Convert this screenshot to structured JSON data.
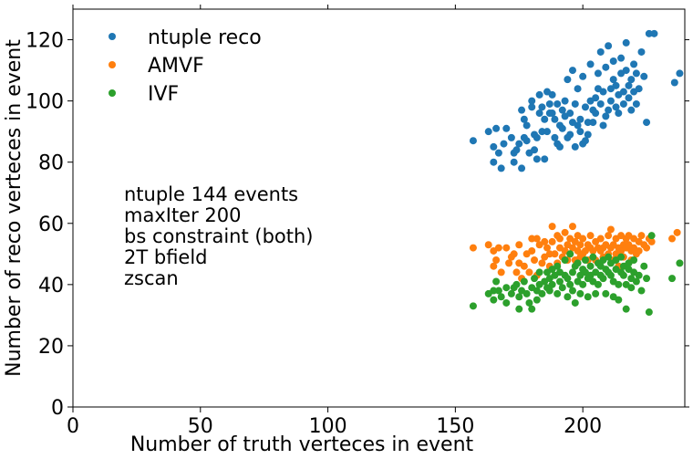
{
  "chart_data": {
    "type": "scatter",
    "xlabel": "Number of truth verteces in event",
    "ylabel": "Number of reco verteces in event",
    "xlim": [
      0,
      240
    ],
    "ylim": [
      0,
      130
    ],
    "xticks": [
      0,
      50,
      100,
      150,
      200
    ],
    "yticks": [
      0,
      20,
      40,
      60,
      80,
      100,
      120
    ],
    "grid": false,
    "legend_position": "top-left",
    "annotation": [
      "ntuple 144 events",
      "maxIter 200",
      "bs constraint (both)",
      "2T bfield",
      "zscan"
    ],
    "series": [
      {
        "name": "ntuple reco",
        "color": "#1f77b4",
        "points": [
          [
            157,
            87
          ],
          [
            163,
            90
          ],
          [
            165,
            85
          ],
          [
            165,
            80
          ],
          [
            166,
            91
          ],
          [
            167,
            83
          ],
          [
            168,
            78
          ],
          [
            169,
            86
          ],
          [
            170,
            91
          ],
          [
            172,
            88
          ],
          [
            173,
            83
          ],
          [
            173,
            80
          ],
          [
            174,
            84
          ],
          [
            175,
            86
          ],
          [
            176,
            78
          ],
          [
            176,
            97
          ],
          [
            177,
            88
          ],
          [
            177,
            94
          ],
          [
            178,
            87
          ],
          [
            178,
            92
          ],
          [
            179,
            83
          ],
          [
            180,
            98
          ],
          [
            180,
            100
          ],
          [
            181,
            89
          ],
          [
            181,
            84
          ],
          [
            182,
            88
          ],
          [
            182,
            81
          ],
          [
            183,
            96
          ],
          [
            183,
            102
          ],
          [
            184,
            90
          ],
          [
            184,
            98
          ],
          [
            185,
            94
          ],
          [
            185,
            81
          ],
          [
            186,
            103
          ],
          [
            186,
            90
          ],
          [
            187,
            96
          ],
          [
            187,
            99
          ],
          [
            188,
            96
          ],
          [
            188,
            102
          ],
          [
            189,
            94
          ],
          [
            189,
            88
          ],
          [
            190,
            86
          ],
          [
            190,
            99
          ],
          [
            191,
            92
          ],
          [
            191,
            85
          ],
          [
            192,
            97
          ],
          [
            192,
            91
          ],
          [
            193,
            100
          ],
          [
            193,
            95
          ],
          [
            194,
            88
          ],
          [
            194,
            107
          ],
          [
            195,
            96
          ],
          [
            195,
            89
          ],
          [
            196,
            110
          ],
          [
            196,
            93
          ],
          [
            197,
            85
          ],
          [
            197,
            99
          ],
          [
            198,
            92
          ],
          [
            198,
            104
          ],
          [
            199,
            94
          ],
          [
            199,
            90
          ],
          [
            200,
            108
          ],
          [
            200,
            86
          ],
          [
            201,
            98
          ],
          [
            201,
            87
          ],
          [
            202,
            93
          ],
          [
            202,
            89
          ],
          [
            203,
            100
          ],
          [
            203,
            112
          ],
          [
            204,
            97
          ],
          [
            204,
            93
          ],
          [
            205,
            101
          ],
          [
            205,
            96
          ],
          [
            206,
            104
          ],
          [
            206,
            109
          ],
          [
            207,
            99
          ],
          [
            207,
            116
          ],
          [
            208,
            103
          ],
          [
            208,
            92
          ],
          [
            209,
            95
          ],
          [
            209,
            111
          ],
          [
            210,
            118
          ],
          [
            210,
            97
          ],
          [
            211,
            104
          ],
          [
            211,
            100
          ],
          [
            212,
            107
          ],
          [
            212,
            113
          ],
          [
            213,
            98
          ],
          [
            213,
            105
          ],
          [
            214,
            102
          ],
          [
            214,
            96
          ],
          [
            215,
            109
          ],
          [
            215,
            114
          ],
          [
            216,
            103
          ],
          [
            216,
            99
          ],
          [
            217,
            110
          ],
          [
            217,
            119
          ],
          [
            218,
            105
          ],
          [
            218,
            101
          ],
          [
            219,
            107
          ],
          [
            219,
            97
          ],
          [
            220,
            112
          ],
          [
            220,
            103
          ],
          [
            221,
            109
          ],
          [
            221,
            99
          ],
          [
            222,
            104
          ],
          [
            223,
            116
          ],
          [
            224,
            108
          ],
          [
            225,
            93
          ],
          [
            226,
            122
          ],
          [
            228,
            122
          ],
          [
            236,
            106
          ],
          [
            238,
            109
          ]
        ]
      },
      {
        "name": "AMVF",
        "color": "#ff7f0e",
        "points": [
          [
            157,
            52
          ],
          [
            163,
            53
          ],
          [
            165,
            51
          ],
          [
            165,
            46
          ],
          [
            166,
            48
          ],
          [
            167,
            52
          ],
          [
            168,
            44
          ],
          [
            170,
            52
          ],
          [
            171,
            47
          ],
          [
            172,
            49
          ],
          [
            173,
            50
          ],
          [
            174,
            44
          ],
          [
            175,
            53
          ],
          [
            175,
            47
          ],
          [
            176,
            42
          ],
          [
            177,
            46
          ],
          [
            178,
            50
          ],
          [
            179,
            44
          ],
          [
            180,
            55
          ],
          [
            180,
            51
          ],
          [
            181,
            48
          ],
          [
            182,
            55
          ],
          [
            182,
            43
          ],
          [
            183,
            53
          ],
          [
            184,
            47
          ],
          [
            185,
            54
          ],
          [
            185,
            49
          ],
          [
            186,
            52
          ],
          [
            187,
            50
          ],
          [
            187,
            46
          ],
          [
            188,
            59
          ],
          [
            188,
            54
          ],
          [
            189,
            50
          ],
          [
            190,
            56
          ],
          [
            190,
            47
          ],
          [
            191,
            52
          ],
          [
            191,
            55
          ],
          [
            192,
            49
          ],
          [
            193,
            57
          ],
          [
            193,
            51
          ],
          [
            194,
            53
          ],
          [
            194,
            48
          ],
          [
            195,
            55
          ],
          [
            195,
            50
          ],
          [
            196,
            59
          ],
          [
            196,
            52
          ],
          [
            197,
            48
          ],
          [
            197,
            54
          ],
          [
            198,
            56
          ],
          [
            198,
            51
          ],
          [
            199,
            53
          ],
          [
            199,
            49
          ],
          [
            200,
            50
          ],
          [
            200,
            55
          ],
          [
            201,
            51
          ],
          [
            202,
            48
          ],
          [
            202,
            53
          ],
          [
            203,
            52
          ],
          [
            203,
            56
          ],
          [
            204,
            51
          ],
          [
            205,
            48
          ],
          [
            205,
            54
          ],
          [
            206,
            52
          ],
          [
            207,
            51
          ],
          [
            207,
            55
          ],
          [
            208,
            49
          ],
          [
            208,
            52
          ],
          [
            209,
            53
          ],
          [
            210,
            56
          ],
          [
            210,
            50
          ],
          [
            211,
            58
          ],
          [
            211,
            52
          ],
          [
            212,
            53
          ],
          [
            212,
            48
          ],
          [
            213,
            50
          ],
          [
            213,
            55
          ],
          [
            214,
            52
          ],
          [
            214,
            46
          ],
          [
            215,
            56
          ],
          [
            215,
            51
          ],
          [
            216,
            53
          ],
          [
            216,
            49
          ],
          [
            217,
            55
          ],
          [
            217,
            52
          ],
          [
            218,
            53
          ],
          [
            218,
            56
          ],
          [
            219,
            51
          ],
          [
            219,
            48
          ],
          [
            220,
            55
          ],
          [
            220,
            52
          ],
          [
            221,
            50
          ],
          [
            222,
            54
          ],
          [
            222,
            51
          ],
          [
            223,
            56
          ],
          [
            224,
            53
          ],
          [
            225,
            52
          ],
          [
            226,
            55
          ],
          [
            227,
            54
          ],
          [
            235,
            55
          ],
          [
            237,
            57
          ]
        ]
      },
      {
        "name": "IVF",
        "color": "#2ca02c",
        "points": [
          [
            157,
            33
          ],
          [
            163,
            37
          ],
          [
            165,
            38
          ],
          [
            165,
            35
          ],
          [
            166,
            41
          ],
          [
            167,
            38
          ],
          [
            168,
            36
          ],
          [
            170,
            39
          ],
          [
            170,
            34
          ],
          [
            172,
            37
          ],
          [
            173,
            39
          ],
          [
            174,
            40
          ],
          [
            175,
            36
          ],
          [
            175,
            32
          ],
          [
            176,
            38
          ],
          [
            177,
            41
          ],
          [
            178,
            37
          ],
          [
            179,
            34
          ],
          [
            180,
            39
          ],
          [
            180,
            32
          ],
          [
            181,
            42
          ],
          [
            182,
            38
          ],
          [
            182,
            35
          ],
          [
            183,
            40
          ],
          [
            183,
            44
          ],
          [
            184,
            37
          ],
          [
            185,
            41
          ],
          [
            186,
            39
          ],
          [
            186,
            44
          ],
          [
            187,
            42
          ],
          [
            187,
            38
          ],
          [
            188,
            45
          ],
          [
            188,
            40
          ],
          [
            189,
            43
          ],
          [
            190,
            37
          ],
          [
            190,
            46
          ],
          [
            191,
            41
          ],
          [
            191,
            44
          ],
          [
            192,
            39
          ],
          [
            193,
            43
          ],
          [
            193,
            48
          ],
          [
            194,
            36
          ],
          [
            194,
            42
          ],
          [
            195,
            50
          ],
          [
            195,
            40
          ],
          [
            196,
            44
          ],
          [
            196,
            38
          ],
          [
            197,
            34
          ],
          [
            197,
            46
          ],
          [
            198,
            41
          ],
          [
            198,
            47
          ],
          [
            199,
            43
          ],
          [
            199,
            37
          ],
          [
            200,
            45
          ],
          [
            200,
            40
          ],
          [
            201,
            44
          ],
          [
            201,
            48
          ],
          [
            202,
            42
          ],
          [
            202,
            36
          ],
          [
            203,
            46
          ],
          [
            203,
            43
          ],
          [
            204,
            41
          ],
          [
            204,
            49
          ],
          [
            205,
            44
          ],
          [
            205,
            37
          ],
          [
            206,
            47
          ],
          [
            206,
            40
          ],
          [
            207,
            43
          ],
          [
            207,
            46
          ],
          [
            208,
            42
          ],
          [
            208,
            48
          ],
          [
            209,
            37
          ],
          [
            209,
            45
          ],
          [
            210,
            44
          ],
          [
            210,
            49
          ],
          [
            211,
            43
          ],
          [
            211,
            47
          ],
          [
            212,
            41
          ],
          [
            212,
            36
          ],
          [
            213,
            45
          ],
          [
            213,
            48
          ],
          [
            214,
            40
          ],
          [
            214,
            35
          ],
          [
            215,
            44
          ],
          [
            215,
            49
          ],
          [
            216,
            43
          ],
          [
            216,
            46
          ],
          [
            217,
            40
          ],
          [
            217,
            32
          ],
          [
            218,
            45
          ],
          [
            218,
            47
          ],
          [
            219,
            42
          ],
          [
            219,
            39
          ],
          [
            220,
            44
          ],
          [
            220,
            48
          ],
          [
            221,
            41
          ],
          [
            222,
            43
          ],
          [
            223,
            38
          ],
          [
            224,
            46
          ],
          [
            225,
            42
          ],
          [
            226,
            31
          ],
          [
            227,
            56
          ],
          [
            235,
            42
          ],
          [
            238,
            47
          ]
        ]
      }
    ]
  }
}
